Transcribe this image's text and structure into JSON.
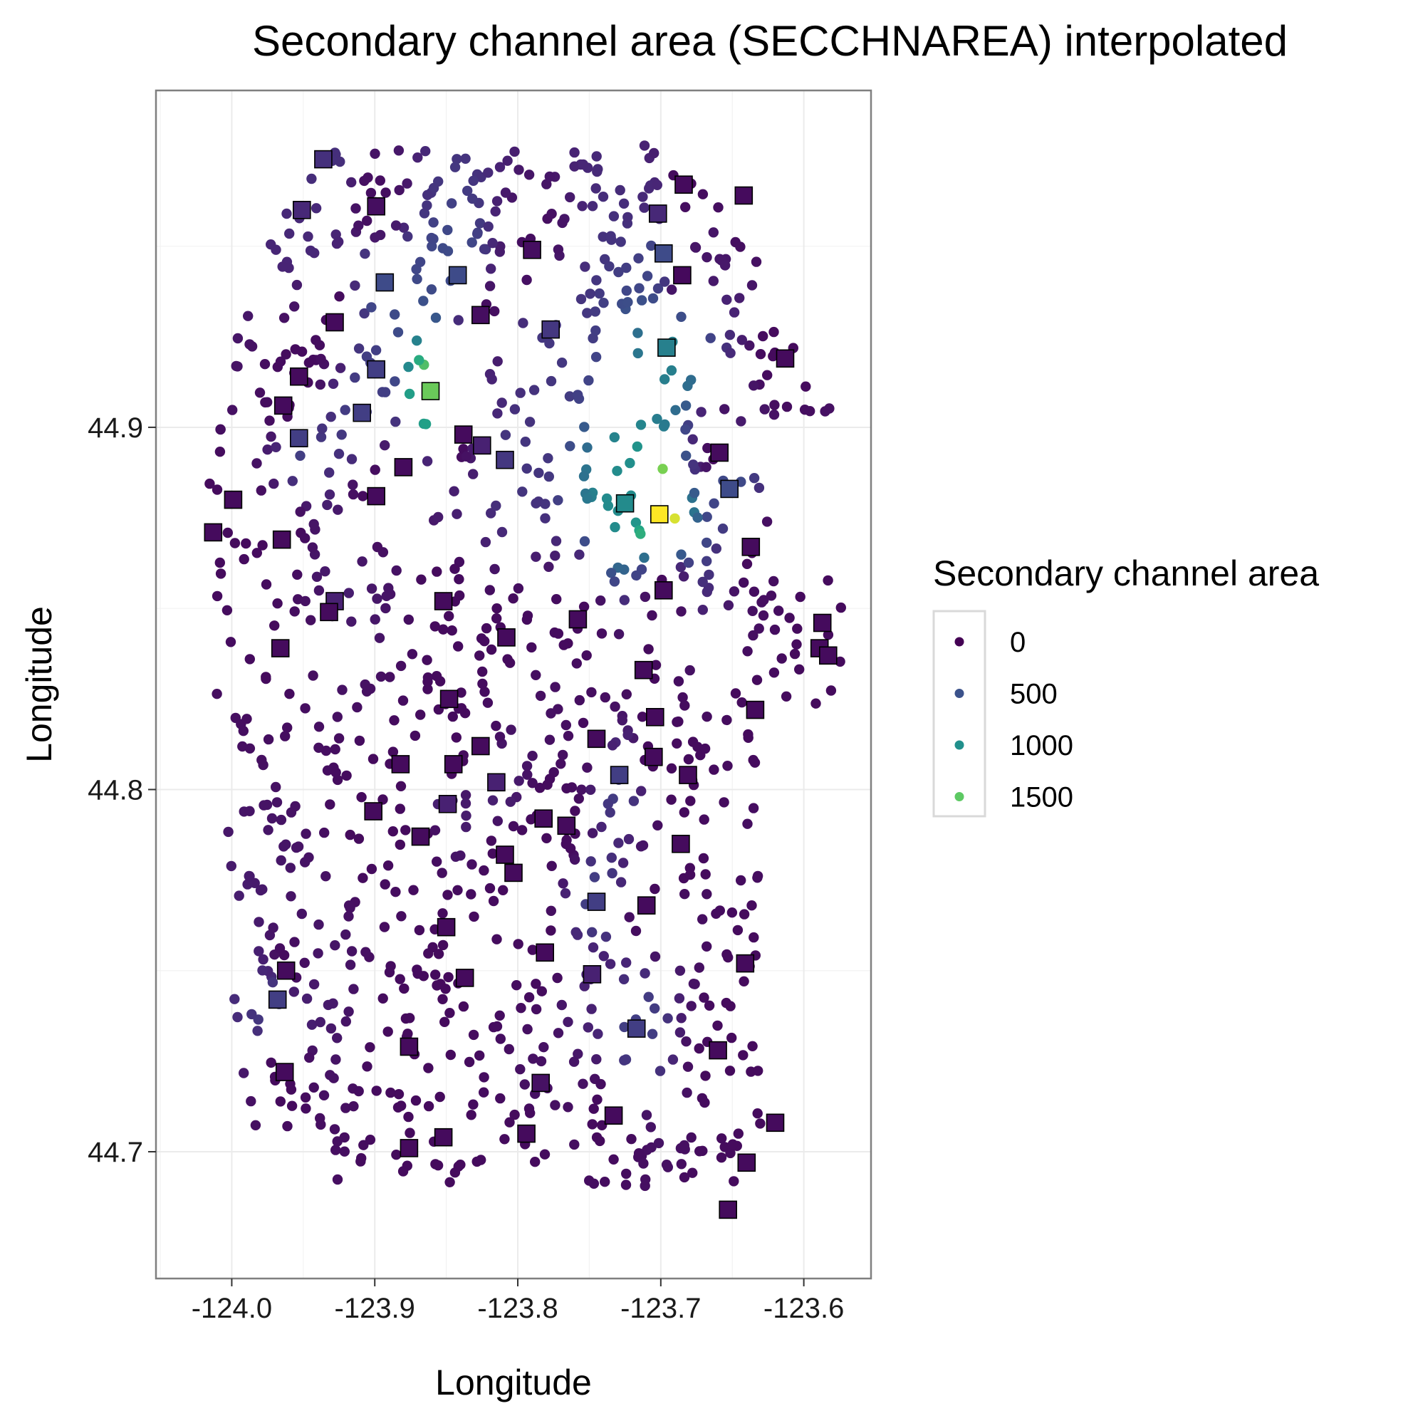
{
  "chart_data": {
    "type": "scatter",
    "title": "Secondary channel area (SECCHNAREA) interpolated",
    "xlabel": "Longitude",
    "ylabel": "Longitude",
    "xlim": [
      -124.053,
      -123.553
    ],
    "ylim": [
      44.665,
      44.993
    ],
    "x_ticks": [
      -124.0,
      -123.9,
      -123.8,
      -123.7,
      -123.6
    ],
    "x_tick_labels": [
      "-124.0",
      "-123.9",
      "-123.8",
      "-123.7",
      "-123.6"
    ],
    "y_ticks": [
      44.7,
      44.8,
      44.9
    ],
    "y_tick_labels": [
      "44.7",
      "44.8",
      "44.9"
    ],
    "grid": true,
    "background": "#ffffff",
    "color_scale": "viridis",
    "color_range": [
      0,
      1760
    ],
    "legend": {
      "title": "Secondary channel area",
      "placement": "right",
      "entries": [
        {
          "label": "0",
          "value": 0,
          "color": "#440154"
        },
        {
          "label": "500",
          "value": 500,
          "color": "#3b528b"
        },
        {
          "label": "1000",
          "value": 1000,
          "color": "#21908c"
        },
        {
          "label": "1500",
          "value": 1500,
          "color": "#5dc963"
        }
      ]
    },
    "series": [
      {
        "marker": "square",
        "points": [
          [
            -123.936,
            44.974,
            300
          ],
          [
            -123.951,
            44.96,
            250
          ],
          [
            -123.899,
            44.961,
            80
          ],
          [
            -123.79,
            44.949,
            80
          ],
          [
            -123.684,
            44.967,
            60
          ],
          [
            -123.642,
            44.964,
            60
          ],
          [
            -123.702,
            44.959,
            250
          ],
          [
            -123.698,
            44.948,
            500
          ],
          [
            -123.685,
            44.942,
            50
          ],
          [
            -123.893,
            44.94,
            500
          ],
          [
            -123.842,
            44.942,
            500
          ],
          [
            -123.826,
            44.931,
            80
          ],
          [
            -123.928,
            44.929,
            60
          ],
          [
            -123.777,
            44.927,
            350
          ],
          [
            -123.696,
            44.922,
            950
          ],
          [
            -123.613,
            44.919,
            60
          ],
          [
            -123.953,
            44.914,
            60
          ],
          [
            -123.899,
            44.916,
            400
          ],
          [
            -123.861,
            44.91,
            1500
          ],
          [
            -123.909,
            44.904,
            400
          ],
          [
            -123.964,
            44.906,
            60
          ],
          [
            -123.953,
            44.897,
            400
          ],
          [
            -123.838,
            44.898,
            60
          ],
          [
            -123.825,
            44.895,
            200
          ],
          [
            -123.809,
            44.891,
            350
          ],
          [
            -123.659,
            44.893,
            60
          ],
          [
            -123.88,
            44.889,
            60
          ],
          [
            -123.899,
            44.881,
            60
          ],
          [
            -123.999,
            44.88,
            60
          ],
          [
            -123.652,
            44.883,
            500
          ],
          [
            -123.725,
            44.879,
            1050
          ],
          [
            -123.701,
            44.876,
            1760
          ],
          [
            -124.013,
            44.871,
            60
          ],
          [
            -123.965,
            44.869,
            60
          ],
          [
            -123.637,
            44.867,
            60
          ],
          [
            -123.852,
            44.852,
            60
          ],
          [
            -123.928,
            44.852,
            200
          ],
          [
            -123.932,
            44.849,
            60
          ],
          [
            -123.698,
            44.855,
            60
          ],
          [
            -123.758,
            44.847,
            60
          ],
          [
            -123.587,
            44.846,
            60
          ],
          [
            -123.808,
            44.842,
            60
          ],
          [
            -123.589,
            44.839,
            60
          ],
          [
            -123.583,
            44.837,
            60
          ],
          [
            -123.966,
            44.839,
            60
          ],
          [
            -123.712,
            44.833,
            60
          ],
          [
            -123.848,
            44.825,
            60
          ],
          [
            -123.634,
            44.822,
            60
          ],
          [
            -123.704,
            44.82,
            60
          ],
          [
            -123.745,
            44.814,
            60
          ],
          [
            -123.826,
            44.812,
            60
          ],
          [
            -123.705,
            44.809,
            60
          ],
          [
            -123.882,
            44.807,
            60
          ],
          [
            -123.845,
            44.807,
            60
          ],
          [
            -123.681,
            44.804,
            60
          ],
          [
            -123.729,
            44.804,
            400
          ],
          [
            -123.815,
            44.802,
            200
          ],
          [
            -123.901,
            44.794,
            60
          ],
          [
            -123.849,
            44.796,
            200
          ],
          [
            -123.782,
            44.792,
            60
          ],
          [
            -123.766,
            44.79,
            60
          ],
          [
            -123.686,
            44.785,
            60
          ],
          [
            -123.868,
            44.787,
            60
          ],
          [
            -123.809,
            44.782,
            60
          ],
          [
            -123.803,
            44.777,
            60
          ],
          [
            -123.745,
            44.769,
            400
          ],
          [
            -123.71,
            44.768,
            60
          ],
          [
            -123.85,
            44.762,
            60
          ],
          [
            -123.781,
            44.755,
            60
          ],
          [
            -123.962,
            44.75,
            60
          ],
          [
            -123.641,
            44.752,
            60
          ],
          [
            -123.837,
            44.748,
            60
          ],
          [
            -123.748,
            44.749,
            200
          ],
          [
            -123.968,
            44.742,
            400
          ],
          [
            -123.717,
            44.734,
            400
          ],
          [
            -123.876,
            44.729,
            60
          ],
          [
            -123.66,
            44.728,
            60
          ],
          [
            -123.963,
            44.722,
            60
          ],
          [
            -123.784,
            44.719,
            100
          ],
          [
            -123.733,
            44.71,
            60
          ],
          [
            -123.62,
            44.708,
            60
          ],
          [
            -123.852,
            44.704,
            60
          ],
          [
            -123.794,
            44.705,
            60
          ],
          [
            -123.876,
            44.701,
            60
          ],
          [
            -123.64,
            44.697,
            60
          ],
          [
            -123.653,
            44.684,
            60
          ]
        ]
      }
    ]
  }
}
